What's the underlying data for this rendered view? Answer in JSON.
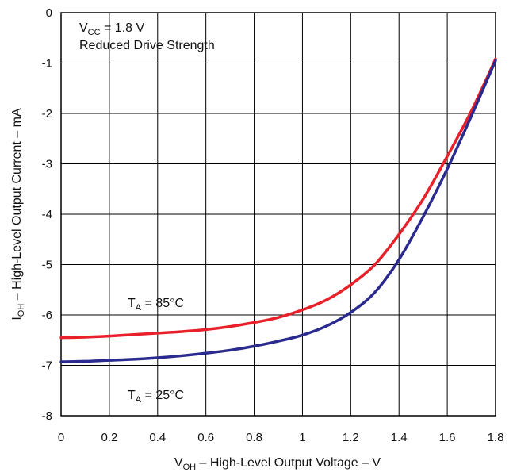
{
  "chart_data": {
    "type": "line",
    "title": "",
    "xlabel": {
      "main": "V",
      "sub": "OH",
      "rest": " – High-Level Output Voltage – V"
    },
    "ylabel": {
      "main": "I",
      "sub": "OH",
      "rest": " – High-Level Output Current – mA"
    },
    "xlim": [
      0,
      1.8
    ],
    "ylim": [
      -8,
      0
    ],
    "x_ticks": [
      0,
      0.2,
      0.4,
      0.6,
      0.8,
      1,
      1.2,
      1.4,
      1.6,
      1.8
    ],
    "x_tick_labels": [
      "0",
      "0.2",
      "0.4",
      "0.6",
      "0.8",
      "1",
      "1.2",
      "1.4",
      "1.6",
      "1.8"
    ],
    "y_ticks": [
      0,
      -1,
      -2,
      -3,
      -4,
      -5,
      -6,
      -7,
      -8
    ],
    "y_tick_labels": [
      "0",
      "-1",
      "-2",
      "-3",
      "-4",
      "-5",
      "-6",
      "-7",
      "-8"
    ],
    "grid": true,
    "conditions": {
      "vcc": {
        "main": "V",
        "sub": "CC",
        "rest": " = 1.8 V"
      },
      "drive": "Reduced Drive Strength"
    },
    "series": [
      {
        "label": {
          "main": "T",
          "sub": "A",
          "rest": " = 85°C"
        },
        "color": "#e8202a",
        "x": [
          0,
          0.1,
          0.2,
          0.3,
          0.4,
          0.5,
          0.6,
          0.7,
          0.8,
          0.9,
          1.0,
          1.1,
          1.2,
          1.3,
          1.4,
          1.5,
          1.6,
          1.7,
          1.8
        ],
        "y": [
          -6.45,
          -6.44,
          -6.42,
          -6.39,
          -6.36,
          -6.33,
          -6.29,
          -6.23,
          -6.15,
          -6.05,
          -5.9,
          -5.7,
          -5.4,
          -5.0,
          -4.4,
          -3.7,
          -2.85,
          -1.95,
          -0.92
        ]
      },
      {
        "label": {
          "main": "T",
          "sub": "A",
          "rest": " = 25°C"
        },
        "color": "#2b2b8f",
        "x": [
          0,
          0.1,
          0.2,
          0.3,
          0.4,
          0.5,
          0.6,
          0.7,
          0.8,
          0.9,
          1.0,
          1.1,
          1.2,
          1.3,
          1.4,
          1.5,
          1.6,
          1.7,
          1.8
        ],
        "y": [
          -6.93,
          -6.92,
          -6.9,
          -6.88,
          -6.85,
          -6.81,
          -6.76,
          -6.7,
          -6.62,
          -6.52,
          -6.4,
          -6.22,
          -5.95,
          -5.55,
          -4.9,
          -4.05,
          -3.1,
          -2.05,
          -0.95
        ]
      }
    ]
  }
}
